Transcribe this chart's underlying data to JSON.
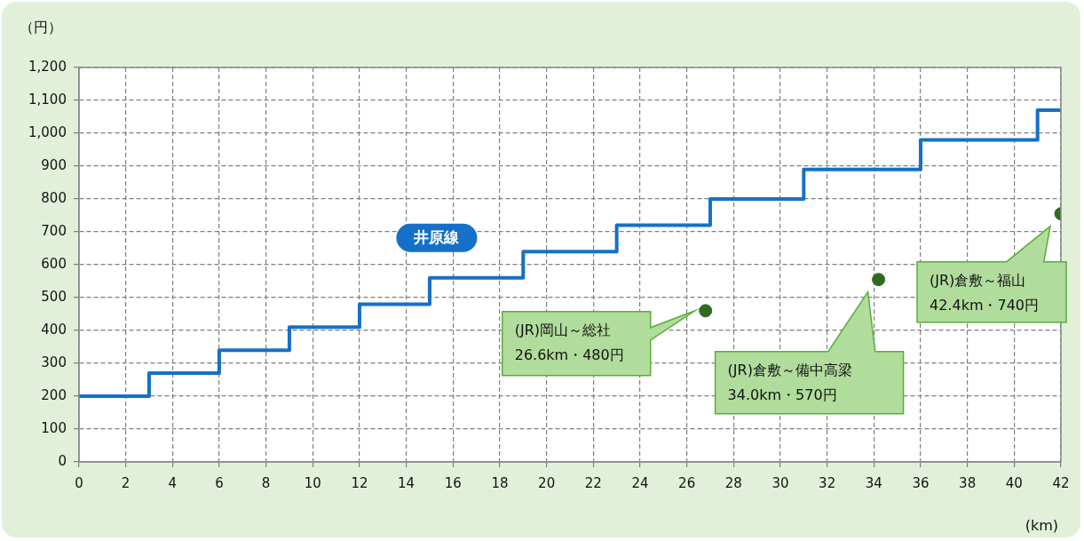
{
  "chart_data": {
    "type": "step",
    "ylabel": "（円）",
    "xlabel": "(km)",
    "xlim": [
      0,
      42
    ],
    "xticks": [
      0,
      2,
      4,
      6,
      8,
      10,
      12,
      14,
      16,
      18,
      20,
      22,
      24,
      26,
      28,
      30,
      32,
      34,
      36,
      38,
      40,
      42
    ],
    "ylim": [
      0,
      1200
    ],
    "yticks": [
      0,
      100,
      200,
      300,
      400,
      500,
      600,
      700,
      800,
      900,
      {
        "value": 1000,
        "label": "1,000"
      },
      {
        "value": 1100,
        "label": "1,100"
      },
      {
        "value": 1200,
        "label": "1,200"
      }
    ],
    "grid": true,
    "legend": false,
    "series": [
      {
        "name": "井原線",
        "color": "#1670c8",
        "x": [
          0,
          3,
          6,
          9,
          12,
          15,
          19,
          23,
          27,
          31,
          36,
          41,
          42
        ],
        "values": [
          200,
          270,
          340,
          410,
          480,
          560,
          640,
          720,
          800,
          890,
          980,
          1070,
          1070
        ]
      },
      {
        "type": "scatter",
        "color": "#2e6b1f",
        "marker": "circle",
        "x": [
          26.8,
          34.2,
          42
        ],
        "values": [
          460,
          555,
          755
        ]
      }
    ],
    "annotations": [
      "(JR)岡山～総社\n26.6km・480円",
      "(JR)倉敷～備中高梁\n34.0km・570円",
      "(JR)倉敷～福山\n42.4km・740円"
    ]
  }
}
